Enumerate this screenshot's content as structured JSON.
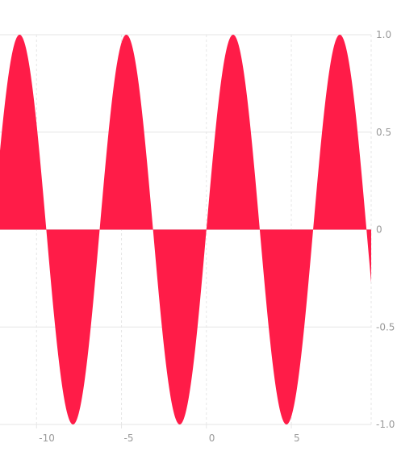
{
  "chart_data": {
    "type": "area",
    "title": "",
    "xlabel": "",
    "ylabel": "",
    "function": "sin",
    "x_range": [
      -12.15,
      9.7
    ],
    "xlim": [
      -12.15,
      9.7
    ],
    "ylim": [
      -1.0,
      1.0
    ],
    "x_ticks": [
      {
        "value": -10,
        "label": "-10"
      },
      {
        "value": -5,
        "label": "-5"
      },
      {
        "value": 0,
        "label": "0"
      },
      {
        "value": 5,
        "label": "5"
      }
    ],
    "y_ticks": [
      {
        "value": 1.0,
        "label": "1.0"
      },
      {
        "value": 0.5,
        "label": "0.5"
      },
      {
        "value": 0,
        "label": "0"
      },
      {
        "value": -0.5,
        "label": "-0.5"
      },
      {
        "value": -1.0,
        "label": "-1.0"
      }
    ],
    "y_axis_position": "right",
    "grid": true,
    "legend": "none",
    "fill_color": "#ff1c48",
    "grid_color": "#e6e6e6",
    "axis_label_color": "#9a9a9a"
  }
}
